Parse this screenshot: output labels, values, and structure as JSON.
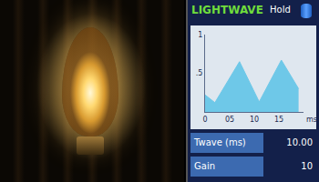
{
  "chart_data": {
    "type": "area",
    "title": "LIGHTWAVE",
    "x": [
      0,
      2,
      7,
      11,
      15.5,
      19
    ],
    "values": [
      0.22,
      0.12,
      0.65,
      0.13,
      0.67,
      0.3
    ],
    "color": "#6ec8e8",
    "xlabel": "ms",
    "xlim": [
      0,
      20
    ],
    "xticks": [
      0,
      {
        "value": 5,
        "label": "05"
      },
      10,
      15
    ],
    "ylim": [
      0,
      1
    ],
    "yticks": [
      {
        "value": 0.5,
        "label": ".5"
      },
      1
    ],
    "grid": false
  },
  "panel": {
    "button": "Hold",
    "rows": [
      {
        "label": "Twave (ms)",
        "value": "10.00"
      },
      {
        "label": "Gain",
        "value": "10"
      }
    ]
  }
}
